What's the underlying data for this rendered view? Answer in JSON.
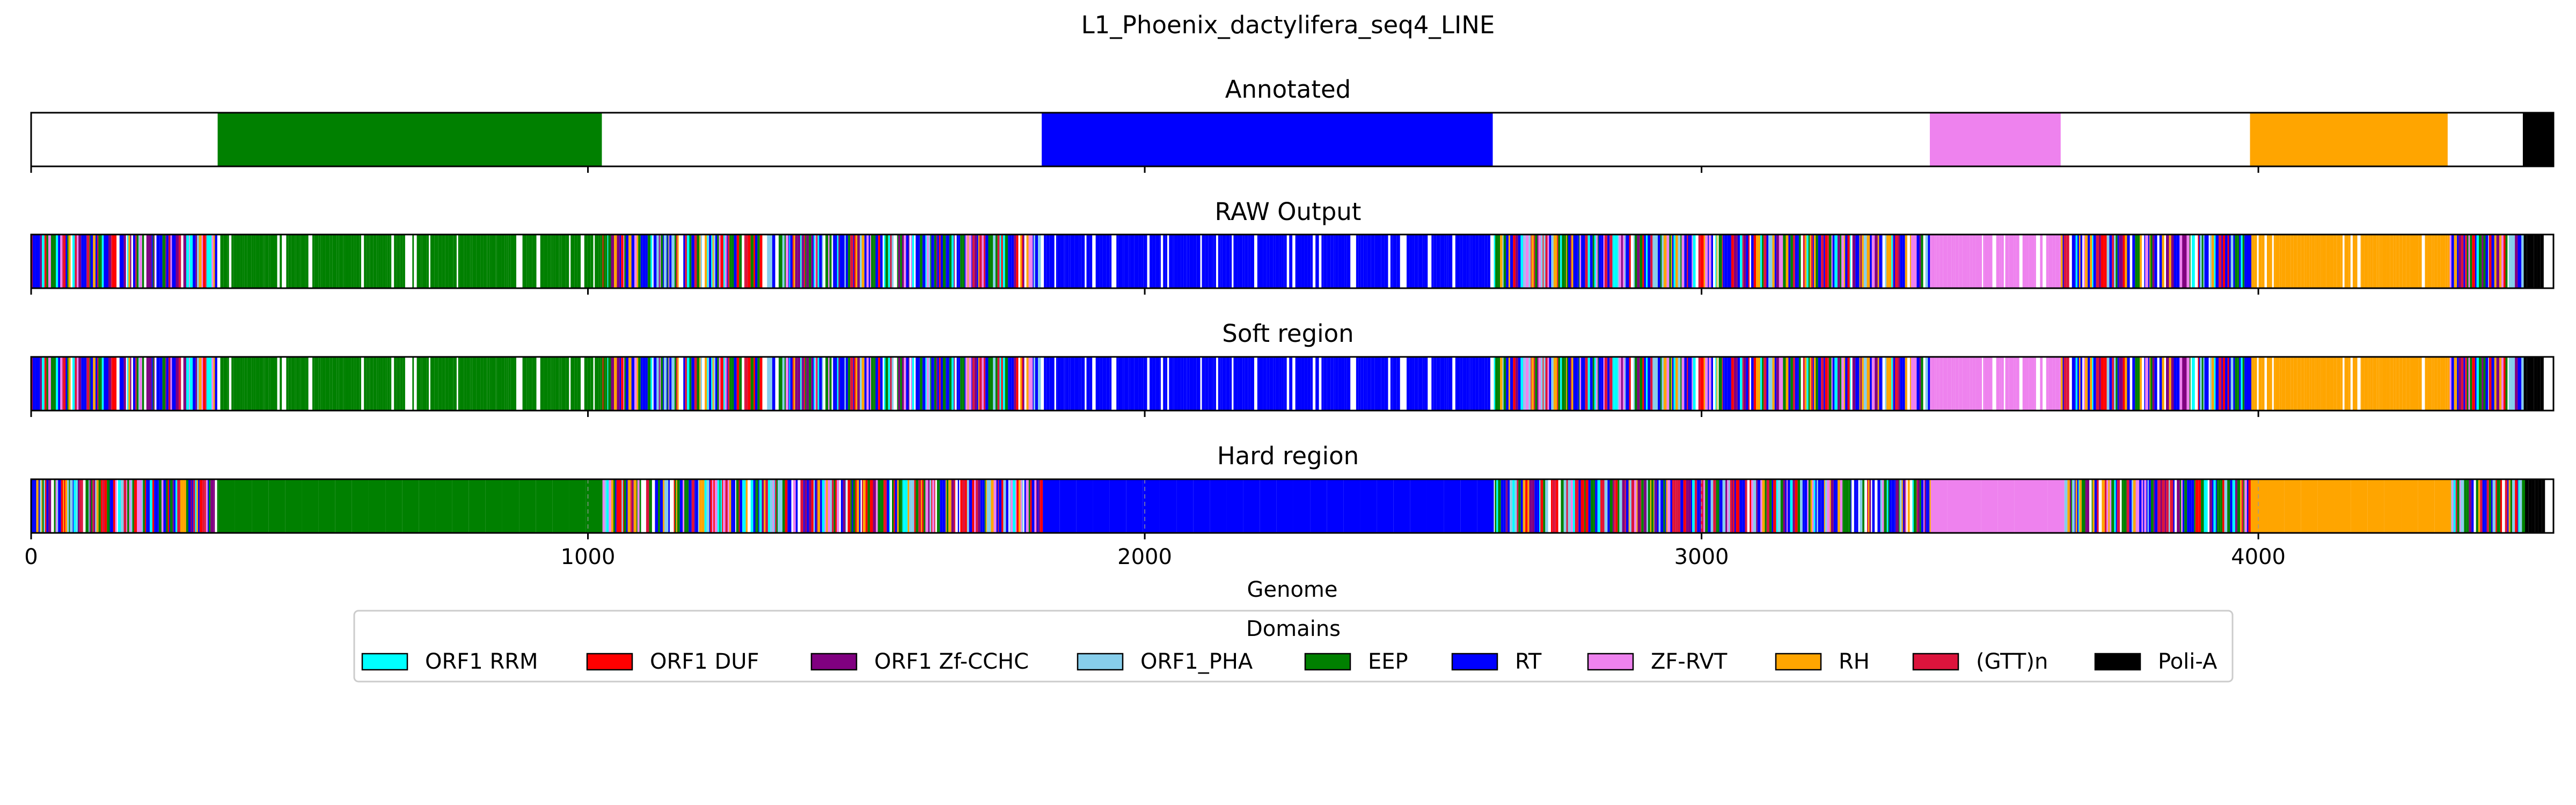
{
  "chart_data": {
    "type": "track",
    "title": "L1_Phoenix_dactylifera_seq4_LINE",
    "xlabel": "Genome",
    "xlim": [
      0,
      4530
    ],
    "xticks": [
      0,
      1000,
      2000,
      3000,
      4000
    ],
    "tracks": [
      {
        "title": "Annotated",
        "mode": "annotated"
      },
      {
        "title": "RAW Output",
        "mode": "noisy",
        "seed": 7
      },
      {
        "title": "Soft region",
        "mode": "noisy",
        "seed": 7
      },
      {
        "title": "Hard region",
        "mode": "hard",
        "seed": 19
      }
    ],
    "annotated_segments": [
      {
        "domain": "EEP",
        "start": 335,
        "end": 1025
      },
      {
        "domain": "RT",
        "start": 1815,
        "end": 2625
      },
      {
        "domain": "ZF-RVT",
        "start": 3410,
        "end": 3645
      },
      {
        "domain": "RH",
        "start": 3985,
        "end": 4340
      },
      {
        "domain": "Poli-A",
        "start": 4475,
        "end": 4530
      }
    ],
    "legend": {
      "title": "Domains",
      "placement": "bottom-center",
      "items": [
        {
          "label": "ORF1 RRM",
          "color": "#00ffff"
        },
        {
          "label": "ORF1 DUF",
          "color": "#ff0000"
        },
        {
          "label": "ORF1 Zf-CCHC",
          "color": "#800080"
        },
        {
          "label": "ORF1_PHA",
          "color": "#87ceeb"
        },
        {
          "label": "EEP",
          "color": "#008000"
        },
        {
          "label": "RT",
          "color": "#0000ff"
        },
        {
          "label": "ZF-RVT",
          "color": "#ee82ee"
        },
        {
          "label": "RH",
          "color": "#ffa500"
        },
        {
          "label": "(GTT)n",
          "color": "#dc143c"
        },
        {
          "label": "Poli-A",
          "color": "#000000"
        }
      ]
    }
  }
}
